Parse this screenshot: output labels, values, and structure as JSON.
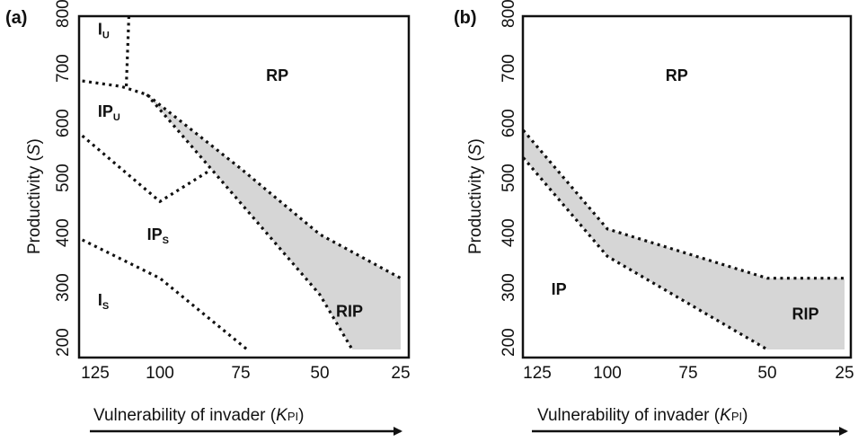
{
  "chart_data": [
    {
      "panel": "(a)",
      "type": "area",
      "xlabel_main": "Vulnerability of invader (",
      "xlabel_var": "K",
      "xlabel_sub": "PI",
      "xlabel_end": ")",
      "ylabel_main": "Productivity (",
      "ylabel_var": "S",
      "ylabel_end": ")",
      "x_reversed": true,
      "xlim": [
        130,
        25
      ],
      "ylim": [
        200,
        825
      ],
      "x_ticks": [
        "125",
        "100",
        "75",
        "50",
        "25"
      ],
      "y_ticks": [
        "200",
        "300",
        "400",
        "500",
        "600",
        "700",
        "800"
      ],
      "boundaries": {
        "ru_upper": [
          [
            130,
            690
          ],
          [
            115,
            680
          ],
          [
            105,
            665
          ],
          [
            75,
            530
          ],
          [
            50,
            410
          ],
          [
            25,
            330
          ]
        ],
        "ru_lower": [
          [
            105,
            665
          ],
          [
            50,
            300
          ],
          [
            40,
            200
          ]
        ],
        "iu_vertical": [
          [
            112,
            825
          ],
          [
            113,
            680
          ]
        ],
        "ipu_ips": [
          [
            130,
            590
          ],
          [
            100,
            470
          ],
          [
            85,
            525
          ]
        ],
        "ips_is": [
          [
            130,
            400
          ],
          [
            100,
            330
          ],
          [
            73,
            200
          ]
        ]
      },
      "shaded": [
        [
          105,
          665
        ],
        [
          75,
          530
        ],
        [
          50,
          410
        ],
        [
          25,
          330
        ],
        [
          25,
          200
        ],
        [
          40,
          200
        ],
        [
          50,
          300
        ]
      ],
      "regions": [
        {
          "label": "I",
          "sub": "U",
          "x": 124,
          "y": 775
        },
        {
          "label": "RP",
          "sub": "",
          "x": 67,
          "y": 690
        },
        {
          "label": "IP",
          "sub": "U",
          "x": 124,
          "y": 625
        },
        {
          "label": "IP",
          "sub": "S",
          "x": 105,
          "y": 400
        },
        {
          "label": "I",
          "sub": "S",
          "x": 124,
          "y": 280
        },
        {
          "label": "RIP",
          "sub": "",
          "x": 45,
          "y": 260
        }
      ]
    },
    {
      "panel": "(b)",
      "type": "area",
      "xlabel_main": "Vulnerability of invader (",
      "xlabel_var": "K",
      "xlabel_sub": "PI",
      "xlabel_end": ")",
      "ylabel_main": "Productivity (",
      "ylabel_var": "S",
      "ylabel_end": ")",
      "x_reversed": true,
      "xlim": [
        130,
        25
      ],
      "ylim": [
        200,
        825
      ],
      "x_ticks": [
        "125",
        "100",
        "75",
        "50",
        "25"
      ],
      "y_ticks": [
        "200",
        "300",
        "400",
        "500",
        "600",
        "700",
        "800"
      ],
      "boundaries": {
        "upper": [
          [
            130,
            600
          ],
          [
            100,
            420
          ],
          [
            50,
            330
          ],
          [
            25,
            330
          ]
        ],
        "lower": [
          [
            130,
            550
          ],
          [
            100,
            370
          ],
          [
            50,
            200
          ]
        ]
      },
      "shaded": [
        [
          130,
          600
        ],
        [
          100,
          420
        ],
        [
          50,
          330
        ],
        [
          25,
          330
        ],
        [
          25,
          200
        ],
        [
          50,
          200
        ],
        [
          100,
          370
        ],
        [
          130,
          550
        ]
      ],
      "regions": [
        {
          "label": "RP",
          "sub": "",
          "x": 82,
          "y": 690
        },
        {
          "label": "IP",
          "sub": "",
          "x": 120,
          "y": 300
        },
        {
          "label": "RIP",
          "sub": "",
          "x": 42,
          "y": 255
        }
      ]
    }
  ]
}
